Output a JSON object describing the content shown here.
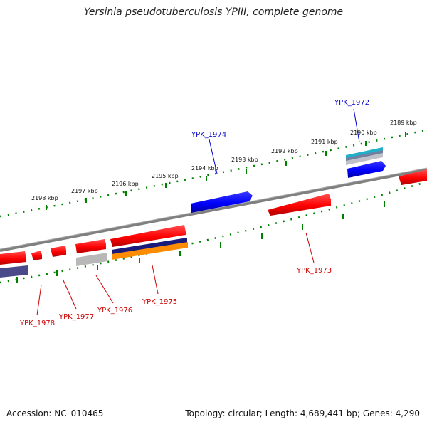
{
  "title": "Yersinia pseudotuberculosis YPIII, complete genome",
  "footer": {
    "accession": "Accession: NC_010465",
    "summary": "Topology: circular; Length: 4,689,441 bp; Genes: 4,290"
  },
  "scale_labels": [
    "2189 kbp",
    "2190 kbp",
    "2191 kbp",
    "2192 kbp",
    "2193 kbp",
    "2194 kbp",
    "2195 kbp",
    "2196 kbp",
    "2197 kbp",
    "2198 kbp"
  ],
  "gene_labels": {
    "ypk_1972": "YPK_1972",
    "ypk_1973": "YPK_1973",
    "ypk_1974": "YPK_1974",
    "ypk_1975": "YPK_1975",
    "ypk_1976": "YPK_1976",
    "ypk_1977": "YPK_1977",
    "ypk_1978": "YPK_1978"
  },
  "colors": {
    "forward_gene": "#0000ff",
    "reverse_gene": "#ff0000",
    "backbone": "#808080",
    "ruler": "#008000",
    "forward_label": "#0000cc",
    "reverse_label": "#cc0000",
    "teal_feature": "#20b0c8",
    "navy_feature": "#1a1a7a",
    "orange_feature": "#ff8c00",
    "silver_feature": "#b8b8b8",
    "slate_feature": "#4a4a8a"
  }
}
